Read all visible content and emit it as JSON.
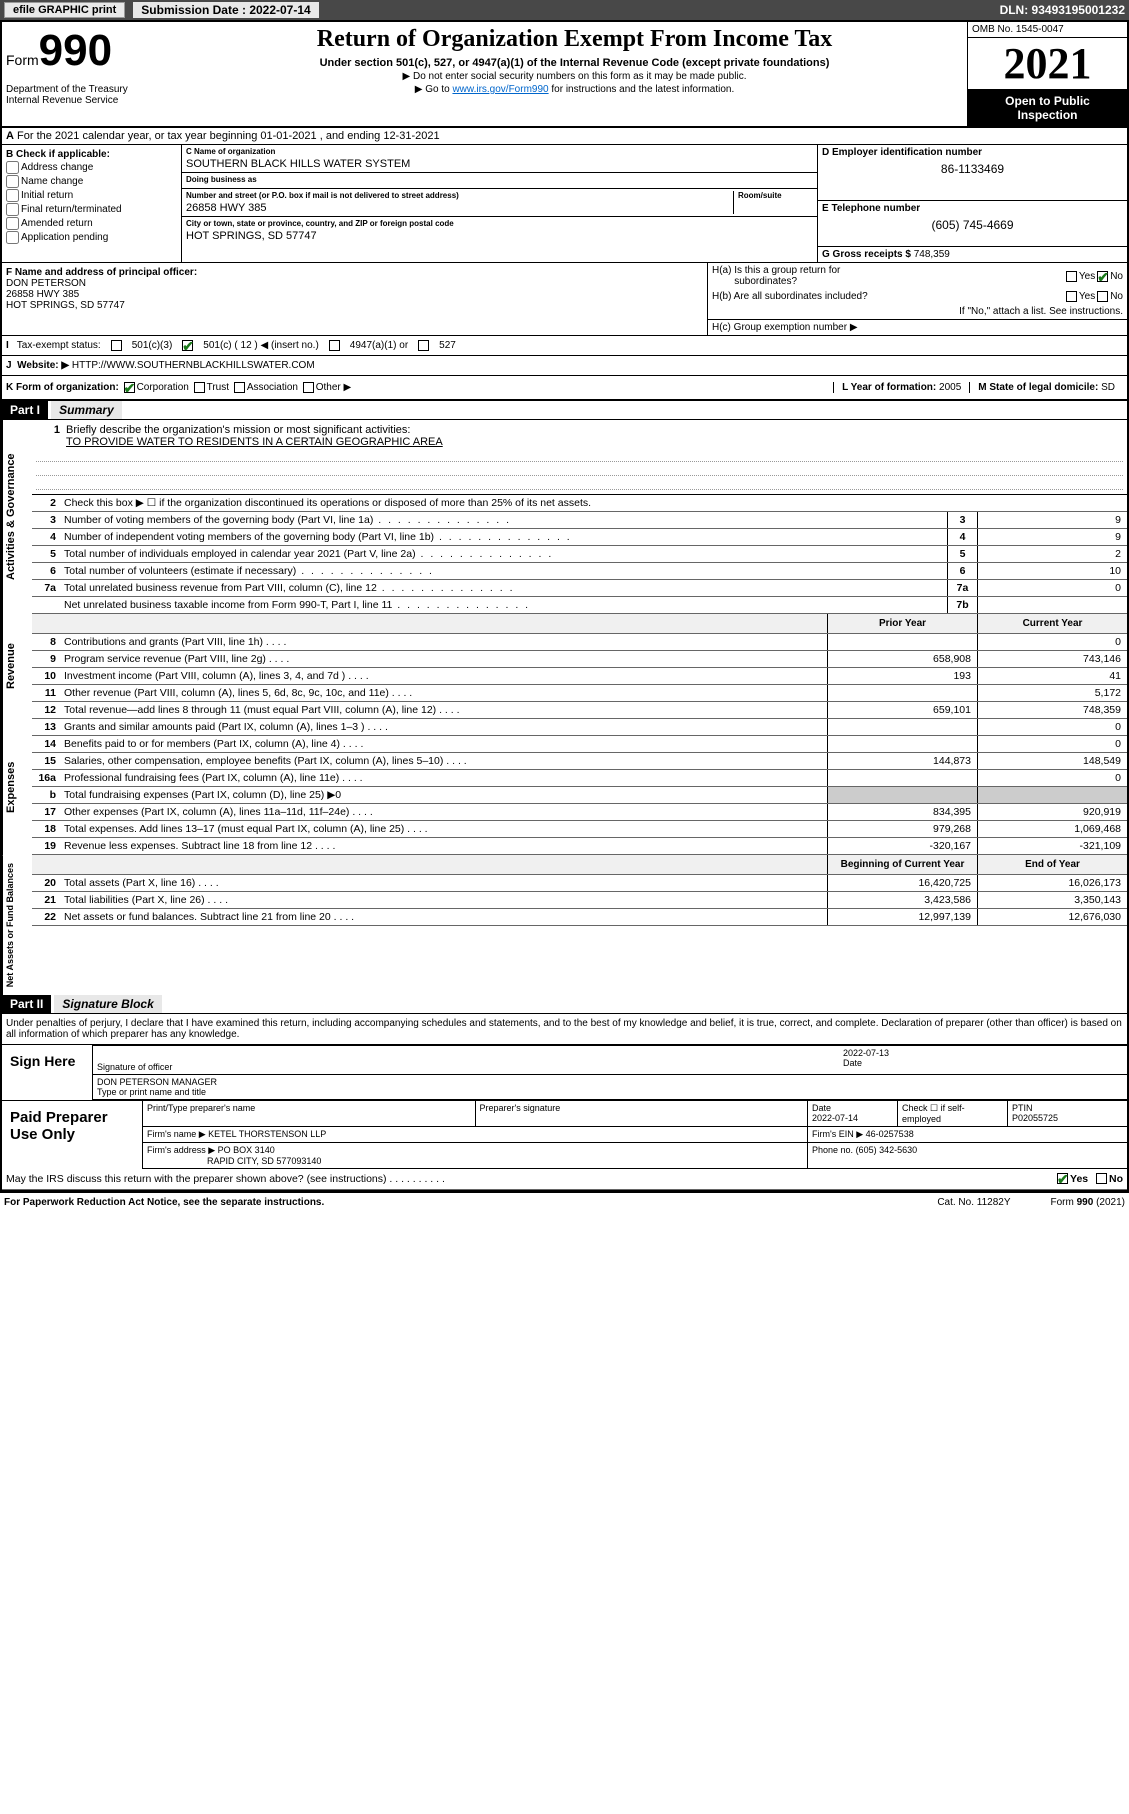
{
  "topbar": {
    "efile": "efile GRAPHIC print",
    "subdate_lbl": "Submission Date : 2022-07-14",
    "dln": "DLN: 93493195001232"
  },
  "header": {
    "form_prefix": "Form",
    "form_num": "990",
    "dept": "Department of the Treasury",
    "irs": "Internal Revenue Service",
    "title": "Return of Organization Exempt From Income Tax",
    "sub1": "Under section 501(c), 527, or 4947(a)(1) of the Internal Revenue Code (except private foundations)",
    "sub2": "▶ Do not enter social security numbers on this form as it may be made public.",
    "sub3_pre": "▶ Go to ",
    "sub3_link": "www.irs.gov/Form990",
    "sub3_post": " for instructions and the latest information.",
    "omb": "OMB No. 1545-0047",
    "year": "2021",
    "open1": "Open to Public",
    "open2": "Inspection"
  },
  "rowA": "For the 2021 calendar year, or tax year beginning 01-01-2021   , and ending 12-31-2021",
  "boxB": {
    "hdr": "B Check if applicable:",
    "opts": [
      "Address change",
      "Name change",
      "Initial return",
      "Final return/terminated",
      "Amended return",
      "Application pending"
    ]
  },
  "boxC": {
    "name_lbl": "C Name of organization",
    "name": "SOUTHERN BLACK HILLS WATER SYSTEM",
    "dba_lbl": "Doing business as",
    "dba": "",
    "addr_lbl": "Number and street (or P.O. box if mail is not delivered to street address)",
    "room_lbl": "Room/suite",
    "addr": "26858 HWY 385",
    "city_lbl": "City or town, state or province, country, and ZIP or foreign postal code",
    "city": "HOT SPRINGS, SD  57747"
  },
  "boxD": {
    "lbl": "D Employer identification number",
    "val": "86-1133469"
  },
  "boxE": {
    "lbl": "E Telephone number",
    "val": "(605) 745-4669"
  },
  "boxG": {
    "lbl": "G Gross receipts $",
    "val": "748,359"
  },
  "boxF": {
    "lbl": "F Name and address of principal officer:",
    "name": "DON PETERSON",
    "addr1": "26858 HWY 385",
    "addr2": "HOT SPRINGS, SD  57747"
  },
  "boxH": {
    "a": "H(a)  Is this a group return for",
    "a2": "subordinates?",
    "b": "H(b)  Are all subordinates included?",
    "c_pre": "If \"No,\" attach a list. See instructions.",
    "c": "H(c)  Group exemption number ▶",
    "yes": "Yes",
    "no": "No"
  },
  "rowI": {
    "lbl": "Tax-exempt status:",
    "o1": "501(c)(3)",
    "o2": "501(c) ( 12 ) ◀ (insert no.)",
    "o3": "4947(a)(1) or",
    "o4": "527"
  },
  "rowJ": {
    "lbl": "Website: ▶",
    "val": "HTTP://WWW.SOUTHERNBLACKHILLSWATER.COM"
  },
  "rowK": {
    "lbl": "K Form of organization:",
    "o1": "Corporation",
    "o2": "Trust",
    "o3": "Association",
    "o4": "Other ▶",
    "L_lbl": "L Year of formation:",
    "L_val": "2005",
    "M_lbl": "M State of legal domicile:",
    "M_val": "SD"
  },
  "part1": {
    "hdr": "Part I",
    "title": "Summary",
    "sidebar1": "Activities & Governance",
    "sidebar2": "Revenue",
    "sidebar3": "Expenses",
    "sidebar4": "Net Assets or Fund Balances",
    "l1": "Briefly describe the organization's mission or most significant activities:",
    "l1_val": "TO PROVIDE WATER TO RESIDENTS IN A CERTAIN GEOGRAPHIC AREA",
    "l2": "Check this box ▶ ☐  if the organization discontinued its operations or disposed of more than 25% of its net assets.",
    "prior_hdr": "Prior Year",
    "curr_hdr": "Current Year",
    "boy_hdr": "Beginning of Current Year",
    "eoy_hdr": "End of Year",
    "lines_single": [
      {
        "n": "3",
        "t": "Number of voting members of the governing body (Part VI, line 1a)",
        "box": "3",
        "v": "9"
      },
      {
        "n": "4",
        "t": "Number of independent voting members of the governing body (Part VI, line 1b)",
        "box": "4",
        "v": "9"
      },
      {
        "n": "5",
        "t": "Total number of individuals employed in calendar year 2021 (Part V, line 2a)",
        "box": "5",
        "v": "2"
      },
      {
        "n": "6",
        "t": "Total number of volunteers (estimate if necessary)",
        "box": "6",
        "v": "10"
      },
      {
        "n": "7a",
        "t": "Total unrelated business revenue from Part VIII, column (C), line 12",
        "box": "7a",
        "v": "0"
      },
      {
        "n": "",
        "t": "Net unrelated business taxable income from Form 990-T, Part I, line 11",
        "box": "7b",
        "v": ""
      }
    ],
    "lines_rev": [
      {
        "n": "8",
        "t": "Contributions and grants (Part VIII, line 1h)",
        "p": "",
        "c": "0"
      },
      {
        "n": "9",
        "t": "Program service revenue (Part VIII, line 2g)",
        "p": "658,908",
        "c": "743,146"
      },
      {
        "n": "10",
        "t": "Investment income (Part VIII, column (A), lines 3, 4, and 7d )",
        "p": "193",
        "c": "41"
      },
      {
        "n": "11",
        "t": "Other revenue (Part VIII, column (A), lines 5, 6d, 8c, 9c, 10c, and 11e)",
        "p": "",
        "c": "5,172"
      },
      {
        "n": "12",
        "t": "Total revenue—add lines 8 through 11 (must equal Part VIII, column (A), line 12)",
        "p": "659,101",
        "c": "748,359"
      }
    ],
    "lines_exp": [
      {
        "n": "13",
        "t": "Grants and similar amounts paid (Part IX, column (A), lines 1–3 )",
        "p": "",
        "c": "0"
      },
      {
        "n": "14",
        "t": "Benefits paid to or for members (Part IX, column (A), line 4)",
        "p": "",
        "c": "0"
      },
      {
        "n": "15",
        "t": "Salaries, other compensation, employee benefits (Part IX, column (A), lines 5–10)",
        "p": "144,873",
        "c": "148,549"
      },
      {
        "n": "16a",
        "t": "Professional fundraising fees (Part IX, column (A), line 11e)",
        "p": "",
        "c": "0"
      },
      {
        "n": "b",
        "t": "Total fundraising expenses (Part IX, column (D), line 25) ▶0",
        "p": "",
        "c": "",
        "nb": true
      },
      {
        "n": "17",
        "t": "Other expenses (Part IX, column (A), lines 11a–11d, 11f–24e)",
        "p": "834,395",
        "c": "920,919"
      },
      {
        "n": "18",
        "t": "Total expenses. Add lines 13–17 (must equal Part IX, column (A), line 25)",
        "p": "979,268",
        "c": "1,069,468"
      },
      {
        "n": "19",
        "t": "Revenue less expenses. Subtract line 18 from line 12",
        "p": "-320,167",
        "c": "-321,109"
      }
    ],
    "lines_net": [
      {
        "n": "20",
        "t": "Total assets (Part X, line 16)",
        "p": "16,420,725",
        "c": "16,026,173"
      },
      {
        "n": "21",
        "t": "Total liabilities (Part X, line 26)",
        "p": "3,423,586",
        "c": "3,350,143"
      },
      {
        "n": "22",
        "t": "Net assets or fund balances. Subtract line 21 from line 20",
        "p": "12,997,139",
        "c": "12,676,030"
      }
    ]
  },
  "part2": {
    "hdr": "Part II",
    "title": "Signature Block",
    "disclaim": "Under penalties of perjury, I declare that I have examined this return, including accompanying schedules and statements, and to the best of my knowledge and belief, it is true, correct, and complete. Declaration of preparer (other than officer) is based on all information of which preparer has any knowledge.",
    "sign_here": "Sign Here",
    "sig_officer": "Signature of officer",
    "sig_date_lbl": "Date",
    "sig_date": "2022-07-13",
    "sig_name": "DON PETERSON MANAGER",
    "sig_name_lbl": "Type or print name and title",
    "paid_hdr": "Paid Preparer Use Only",
    "pt_name_lbl": "Print/Type preparer's name",
    "pt_sig_lbl": "Preparer's signature",
    "pt_date_lbl": "Date",
    "pt_date": "2022-07-14",
    "pt_check_lbl": "Check ☐ if self-employed",
    "ptin_lbl": "PTIN",
    "ptin": "P02055725",
    "firm_name_lbl": "Firm's name    ▶",
    "firm_name": "KETEL THORSTENSON LLP",
    "firm_ein_lbl": "Firm's EIN ▶",
    "firm_ein": "46-0257538",
    "firm_addr_lbl": "Firm's address ▶",
    "firm_addr1": "PO BOX 3140",
    "firm_addr2": "RAPID CITY, SD  577093140",
    "phone_lbl": "Phone no.",
    "phone": "(605) 342-5630",
    "may_irs": "May the IRS discuss this return with the preparer shown above? (see instructions)"
  },
  "footer": {
    "pra": "For Paperwork Reduction Act Notice, see the separate instructions.",
    "cat": "Cat. No. 11282Y",
    "form": "Form 990 (2021)"
  }
}
